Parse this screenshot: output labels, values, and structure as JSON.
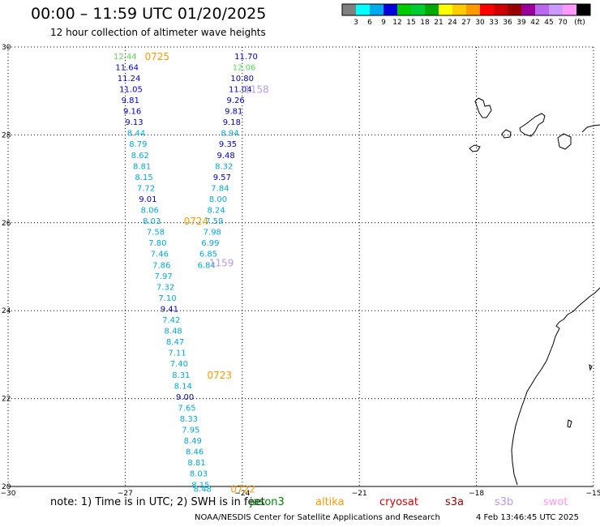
{
  "title": "00:00 – 11:59 UTC 01/20/2025",
  "subtitle": "12 hour collection of altimeter wave heights",
  "colorbar": {
    "colors": [
      "#808080",
      "#00ffff",
      "#00aaee",
      "#0000dd",
      "#00cc00",
      "#00cc33",
      "#00aa00",
      "#ffff00",
      "#ffcc00",
      "#ff9900",
      "#ff0000",
      "#cc0000",
      "#990000",
      "#990099",
      "#bb66ee",
      "#cc99ff",
      "#ff99ff",
      "#000000"
    ],
    "labels": [
      "3",
      "6",
      "9",
      "12",
      "15",
      "18",
      "21",
      "24",
      "27",
      "30",
      "33",
      "36",
      "39",
      "42",
      "45",
      "70"
    ],
    "unit": "(ft)"
  },
  "axes": {
    "lon_ticks": [
      "−30",
      "−27",
      "−24",
      "−21",
      "−18",
      "−15"
    ],
    "lat_ticks": [
      "30",
      "28",
      "26",
      "24",
      "22",
      "20"
    ]
  },
  "chart_data": {
    "type": "scatter",
    "xlabel": "",
    "ylabel": "",
    "xlim": [
      -30,
      -15
    ],
    "ylim": [
      20,
      30
    ],
    "tracks": [
      {
        "pass": "0725",
        "label_lon": -26.5,
        "label_lat": 29.8,
        "points": [
          {
            "lon": -27.3,
            "lat": 29.8,
            "v": "12.44"
          },
          {
            "lon": -27.25,
            "lat": 29.55,
            "v": "11.64"
          },
          {
            "lon": -27.2,
            "lat": 29.3,
            "v": "11.24"
          },
          {
            "lon": -27.15,
            "lat": 29.05,
            "v": "11.05"
          },
          {
            "lon": -27.1,
            "lat": 28.8,
            "v": "9.81"
          },
          {
            "lon": -27.05,
            "lat": 28.55,
            "v": "9.16"
          },
          {
            "lon": -27.0,
            "lat": 28.3,
            "v": "9.13"
          },
          {
            "lon": -26.95,
            "lat": 28.05,
            "v": "8.44"
          },
          {
            "lon": -26.9,
            "lat": 27.8,
            "v": "8.79"
          },
          {
            "lon": -26.85,
            "lat": 27.55,
            "v": "8.62"
          },
          {
            "lon": -26.8,
            "lat": 27.3,
            "v": "8.81"
          },
          {
            "lon": -26.75,
            "lat": 27.05,
            "v": "8.15"
          },
          {
            "lon": -26.7,
            "lat": 26.8,
            "v": "7.72"
          },
          {
            "lon": -26.65,
            "lat": 26.55,
            "v": "9.01"
          },
          {
            "lon": -26.6,
            "lat": 26.3,
            "v": "8.06"
          },
          {
            "lon": -26.55,
            "lat": 26.05,
            "v": "8.03"
          }
        ]
      },
      {
        "pass": "0724",
        "label_lon": -25.5,
        "label_lat": 26.05,
        "points": [
          {
            "lon": -26.45,
            "lat": 25.8,
            "v": "7.58"
          },
          {
            "lon": -26.4,
            "lat": 25.55,
            "v": "7.80"
          },
          {
            "lon": -26.35,
            "lat": 25.3,
            "v": "7.46"
          },
          {
            "lon": -26.3,
            "lat": 25.05,
            "v": "7.86"
          },
          {
            "lon": -26.25,
            "lat": 24.8,
            "v": "7.97"
          },
          {
            "lon": -26.2,
            "lat": 24.55,
            "v": "7.32"
          },
          {
            "lon": -26.15,
            "lat": 24.3,
            "v": "7.10"
          },
          {
            "lon": -26.1,
            "lat": 24.05,
            "v": "9.41"
          },
          {
            "lon": -26.05,
            "lat": 23.8,
            "v": "7.42"
          },
          {
            "lon": -26.0,
            "lat": 23.55,
            "v": "8.48"
          },
          {
            "lon": -25.95,
            "lat": 23.3,
            "v": "8.47"
          },
          {
            "lon": -25.9,
            "lat": 23.05,
            "v": "7.11"
          }
        ]
      },
      {
        "pass": "0723",
        "label_lon": -24.9,
        "label_lat": 22.55,
        "points": [
          {
            "lon": -25.85,
            "lat": 22.8,
            "v": "7.40"
          },
          {
            "lon": -25.8,
            "lat": 22.55,
            "v": "8.31"
          },
          {
            "lon": -25.75,
            "lat": 22.3,
            "v": "8.14"
          },
          {
            "lon": -25.7,
            "lat": 22.05,
            "v": "9.00"
          },
          {
            "lon": -25.65,
            "lat": 21.8,
            "v": "7.65"
          },
          {
            "lon": -25.6,
            "lat": 21.55,
            "v": "8.33"
          },
          {
            "lon": -25.55,
            "lat": 21.3,
            "v": "7.95"
          },
          {
            "lon": -25.5,
            "lat": 21.05,
            "v": "8.49"
          },
          {
            "lon": -25.45,
            "lat": 20.8,
            "v": "8.46"
          },
          {
            "lon": -25.4,
            "lat": 20.55,
            "v": "8.81"
          },
          {
            "lon": -25.35,
            "lat": 20.3,
            "v": "8.03"
          },
          {
            "lon": -25.3,
            "lat": 20.05,
            "v": "8.15"
          }
        ]
      },
      {
        "pass": "0722",
        "label_lon": -24.3,
        "label_lat": 19.95,
        "points": [
          {
            "lon": -25.25,
            "lat": 19.95,
            "v": "8.48"
          }
        ]
      },
      {
        "pass": "1158",
        "label_lon": -23.95,
        "label_lat": 29.05,
        "points": [
          {
            "lon": -24.2,
            "lat": 29.8,
            "v": "11.70"
          },
          {
            "lon": -24.25,
            "lat": 29.55,
            "v": "12.06"
          },
          {
            "lon": -24.3,
            "lat": 29.3,
            "v": "10.80"
          },
          {
            "lon": -24.35,
            "lat": 29.05,
            "v": "11.04"
          },
          {
            "lon": -24.4,
            "lat": 28.8,
            "v": "9.26"
          },
          {
            "lon": -24.45,
            "lat": 28.55,
            "v": "9.81"
          },
          {
            "lon": -24.5,
            "lat": 28.3,
            "v": "9.18"
          },
          {
            "lon": -24.55,
            "lat": 28.05,
            "v": "8.94"
          },
          {
            "lon": -24.6,
            "lat": 27.8,
            "v": "9.35"
          },
          {
            "lon": -24.65,
            "lat": 27.55,
            "v": "9.48"
          },
          {
            "lon": -24.7,
            "lat": 27.3,
            "v": "8.32"
          },
          {
            "lon": -24.75,
            "lat": 27.05,
            "v": "9.57"
          },
          {
            "lon": -24.8,
            "lat": 26.8,
            "v": "7.84"
          },
          {
            "lon": -24.85,
            "lat": 26.55,
            "v": "8.00"
          },
          {
            "lon": -24.9,
            "lat": 26.3,
            "v": "8.24"
          },
          {
            "lon": -24.95,
            "lat": 26.05,
            "v": "7.59"
          }
        ]
      },
      {
        "pass": "1159",
        "label_lon": -24.85,
        "label_lat": 25.1,
        "points": [
          {
            "lon": -25.0,
            "lat": 25.8,
            "v": "7.98"
          },
          {
            "lon": -25.05,
            "lat": 25.55,
            "v": "6.99"
          },
          {
            "lon": -25.1,
            "lat": 25.3,
            "v": "6.85"
          },
          {
            "lon": -25.15,
            "lat": 25.05,
            "v": "6.84"
          }
        ]
      }
    ]
  },
  "legend": {
    "note": "note: 1) Time is in UTC; 2) SWH is in feet",
    "satellites": [
      {
        "name": "jason3",
        "color": "#008800"
      },
      {
        "name": "altika",
        "color": "#ff9900"
      },
      {
        "name": "cryosat",
        "color": "#dd0000"
      },
      {
        "name": "s3a",
        "color": "#990000"
      },
      {
        "name": "s3b",
        "color": "#bb99ee"
      },
      {
        "name": "swot",
        "color": "#ff99ee"
      }
    ],
    "credit": "NOAA/NESDIS Center for Satellite Applications and Research",
    "timestamp": "4 Feb 13:46:45 UTC 2025"
  },
  "pass_colors": {
    "0725": "#ff9900",
    "0724": "#ff9900",
    "0723": "#ff9900",
    "0722": "#ff9900",
    "1158": "#bb99ee",
    "1159": "#bb99ee"
  }
}
